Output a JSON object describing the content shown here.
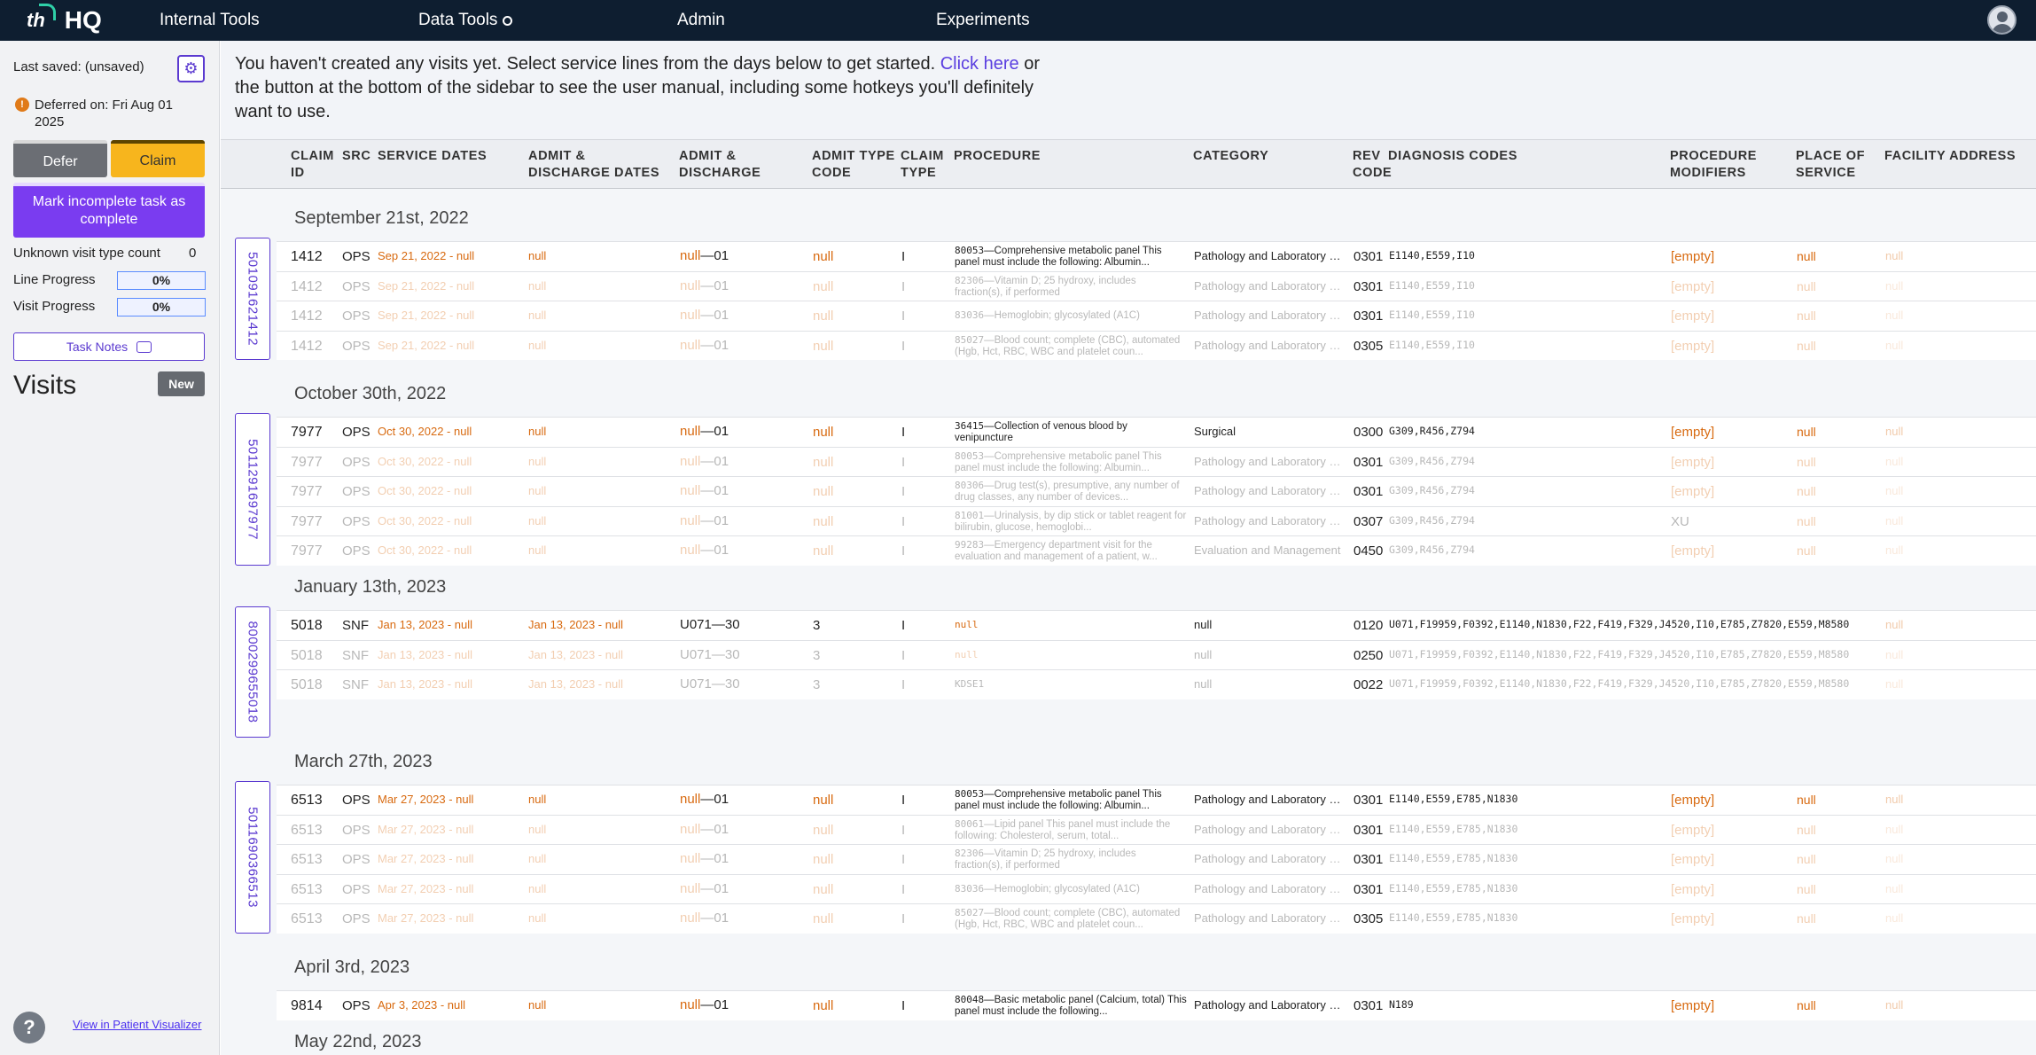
{
  "nav": {
    "logo_mark": "th",
    "logo_text": "HQ",
    "items": [
      "Internal Tools",
      "Data Tools",
      "Admin",
      "Experiments"
    ]
  },
  "sidebar": {
    "last_saved": "Last saved: (unsaved)",
    "deferred": "Deferred on: Fri Aug 01 2025",
    "defer_label": "Defer",
    "claim_label": "Claim",
    "mark_label": "Mark incomplete task as complete",
    "unknown_label": "Unknown visit type count",
    "unknown_value": "0",
    "line_label": "Line Progress",
    "line_value": "0%",
    "visit_label": "Visit Progress",
    "visit_value": "0%",
    "notes_label": "Task Notes",
    "visits_title": "Visits",
    "new_label": "New",
    "help": "?",
    "visualizer": "View in Patient Visualizer"
  },
  "banner": {
    "text": "You haven't created any visits yet. Select service lines from the days below to get started.",
    "link": "Click here",
    "rest": "or the button at the bottom of the sidebar to see the user manual, including some hotkeys you'll definitely want to use."
  },
  "headers": [
    "CLAIM ID",
    "SRC",
    "SERVICE DATES",
    "ADMIT & DISCHARGE DATES",
    "ADMIT & DISCHARGE",
    "ADMIT TYPE CODE",
    "CLAIM TYPE",
    "PROCEDURE",
    "CATEGORY",
    "REV CODE",
    "DIAGNOSIS CODES",
    "PROCEDURE MODIFIERS",
    "PLACE OF SERVICE",
    "FACILITY ADDRESS"
  ],
  "groups": [
    {
      "date": "September 21st, 2022",
      "claim": "5010916214​12",
      "rows": [
        {
          "cid": "1412",
          "src": "OPS",
          "sd": "Sep 21, 2022 - null",
          "ad": "null",
          "adc": "null",
          "adc2": "01",
          "atc": "null",
          "ct": "I",
          "pcode": "80053",
          "pdesc": "Comprehensive metabolic panel This panel must include the following: Albumin...",
          "cat": "Pathology and Laboratory Procedures",
          "rev": "0301",
          "dx": "E1140,E559,I10",
          "mod": "[empty]",
          "pos": "null",
          "fac": "null"
        },
        {
          "cid": "1412",
          "src": "OPS",
          "sd": "Sep 21, 2022 - null",
          "ad": "null",
          "adc": "null",
          "adc2": "01",
          "atc": "null",
          "ct": "I",
          "pcode": "82306",
          "pdesc": "Vitamin D; 25 hydroxy, includes fraction(s), if performed",
          "cat": "Pathology and Laboratory Procedures",
          "rev": "0301",
          "dx": "E1140,E559,I10",
          "mod": "[empty]",
          "pos": "null",
          "fac": "null"
        },
        {
          "cid": "1412",
          "src": "OPS",
          "sd": "Sep 21, 2022 - null",
          "ad": "null",
          "adc": "null",
          "adc2": "01",
          "atc": "null",
          "ct": "I",
          "pcode": "83036",
          "pdesc": "Hemoglobin; glycosylated (A1C)",
          "cat": "Pathology and Laboratory Procedures",
          "rev": "0301",
          "dx": "E1140,E559,I10",
          "mod": "[empty]",
          "pos": "null",
          "fac": "null"
        },
        {
          "cid": "1412",
          "src": "OPS",
          "sd": "Sep 21, 2022 - null",
          "ad": "null",
          "adc": "null",
          "adc2": "01",
          "atc": "null",
          "ct": "I",
          "pcode": "85027",
          "pdesc": "Blood count; complete (CBC), automated (Hgb, Hct, RBC, WBC and platelet coun...",
          "cat": "Pathology and Laboratory Procedures",
          "rev": "0305",
          "dx": "E1140,E559,I10",
          "mod": "[empty]",
          "pos": "null",
          "fac": "null"
        }
      ]
    },
    {
      "date": "October 30th, 2022",
      "claim": "5011291697977",
      "rows": [
        {
          "cid": "7977",
          "src": "OPS",
          "sd": "Oct 30, 2022 - null",
          "ad": "null",
          "adc": "null",
          "adc2": "01",
          "atc": "null",
          "ct": "I",
          "pcode": "36415",
          "pdesc": "Collection of venous blood by venipuncture",
          "cat": "Surgical",
          "rev": "0300",
          "dx": "G309,R456,Z794",
          "mod": "[empty]",
          "pos": "null",
          "fac": "null"
        },
        {
          "cid": "7977",
          "src": "OPS",
          "sd": "Oct 30, 2022 - null",
          "ad": "null",
          "adc": "null",
          "adc2": "01",
          "atc": "null",
          "ct": "I",
          "pcode": "80053",
          "pdesc": "Comprehensive metabolic panel This panel must include the following: Albumin...",
          "cat": "Pathology and Laboratory Procedures",
          "rev": "0301",
          "dx": "G309,R456,Z794",
          "mod": "[empty]",
          "pos": "null",
          "fac": "null"
        },
        {
          "cid": "7977",
          "src": "OPS",
          "sd": "Oct 30, 2022 - null",
          "ad": "null",
          "adc": "null",
          "adc2": "01",
          "atc": "null",
          "ct": "I",
          "pcode": "80306",
          "pdesc": "Drug test(s), presumptive, any number of drug classes, any number of devices...",
          "cat": "Pathology and Laboratory Procedures",
          "rev": "0301",
          "dx": "G309,R456,Z794",
          "mod": "[empty]",
          "pos": "null",
          "fac": "null"
        },
        {
          "cid": "7977",
          "src": "OPS",
          "sd": "Oct 30, 2022 - null",
          "ad": "null",
          "adc": "null",
          "adc2": "01",
          "atc": "null",
          "ct": "I",
          "pcode": "81001",
          "pdesc": "Urinalysis, by dip stick or tablet reagent for bilirubin, glucose, hemoglobi...",
          "cat": "Pathology and Laboratory Procedures",
          "rev": "0307",
          "dx": "G309,R456,Z794",
          "mod": "XU",
          "pos": "null",
          "fac": "null"
        },
        {
          "cid": "7977",
          "src": "OPS",
          "sd": "Oct 30, 2022 - null",
          "ad": "null",
          "adc": "null",
          "adc2": "01",
          "atc": "null",
          "ct": "I",
          "pcode": "99283",
          "pdesc": "Emergency department visit for the evaluation and management of a patient, w...",
          "cat": "Evaluation and Management",
          "rev": "0450",
          "dx": "G309,R456,Z794",
          "mod": "[empty]",
          "pos": "null",
          "fac": "null"
        }
      ]
    },
    {
      "date": "January 13th, 2023",
      "claim": "8000299655018",
      "rows": [
        {
          "cid": "5018",
          "src": "SNF",
          "sd": "Jan 13, 2023 - null",
          "ad": "Jan 13, 2023 - null",
          "adc": "U071",
          "adc2": "30",
          "atc": "3",
          "ct": "I",
          "pcode": "null",
          "pdesc": "",
          "cat": "null",
          "rev": "0120",
          "dx": "U071,F19959,F0392,E1140,N1830,F22,F419,F329,J4520,I10,E785,Z7820,E559,M8580",
          "mod": "",
          "pos": "",
          "fac": "null"
        },
        {
          "cid": "5018",
          "src": "SNF",
          "sd": "Jan 13, 2023 - null",
          "ad": "Jan 13, 2023 - null",
          "adc": "U071",
          "adc2": "30",
          "atc": "3",
          "ct": "I",
          "pcode": "null",
          "pdesc": "",
          "cat": "null",
          "rev": "0250",
          "dx": "U071,F19959,F0392,E1140,N1830,F22,F419,F329,J4520,I10,E785,Z7820,E559,M8580",
          "mod": "",
          "pos": "",
          "fac": "null"
        },
        {
          "cid": "5018",
          "src": "SNF",
          "sd": "Jan 13, 2023 - null",
          "ad": "Jan 13, 2023 - null",
          "adc": "U071",
          "adc2": "30",
          "atc": "3",
          "ct": "I",
          "pcode": "KDSE1",
          "pdesc": "",
          "cat": "null",
          "rev": "0022",
          "dx": "U071,F19959,F0392,E1140,N1830,F22,F419,F329,J4520,I10,E785,Z7820,E559,M8580",
          "mod": "",
          "pos": "",
          "fac": "null"
        }
      ]
    },
    {
      "date": "March 27th, 2023",
      "claim": "5011690366513",
      "rows": [
        {
          "cid": "6513",
          "src": "OPS",
          "sd": "Mar 27, 2023 - null",
          "ad": "null",
          "adc": "null",
          "adc2": "01",
          "atc": "null",
          "ct": "I",
          "pcode": "80053",
          "pdesc": "Comprehensive metabolic panel This panel must include the following: Albumin...",
          "cat": "Pathology and Laboratory Procedures",
          "rev": "0301",
          "dx": "E1140,E559,E785,N1830",
          "mod": "[empty]",
          "pos": "null",
          "fac": "null"
        },
        {
          "cid": "6513",
          "src": "OPS",
          "sd": "Mar 27, 2023 - null",
          "ad": "null",
          "adc": "null",
          "adc2": "01",
          "atc": "null",
          "ct": "I",
          "pcode": "80061",
          "pdesc": "Lipid panel This panel must include the following: Cholesterol, serum, total...",
          "cat": "Pathology and Laboratory Procedures",
          "rev": "0301",
          "dx": "E1140,E559,E785,N1830",
          "mod": "[empty]",
          "pos": "null",
          "fac": "null"
        },
        {
          "cid": "6513",
          "src": "OPS",
          "sd": "Mar 27, 2023 - null",
          "ad": "null",
          "adc": "null",
          "adc2": "01",
          "atc": "null",
          "ct": "I",
          "pcode": "82306",
          "pdesc": "Vitamin D; 25 hydroxy, includes fraction(s), if performed",
          "cat": "Pathology and Laboratory Procedures",
          "rev": "0301",
          "dx": "E1140,E559,E785,N1830",
          "mod": "[empty]",
          "pos": "null",
          "fac": "null"
        },
        {
          "cid": "6513",
          "src": "OPS",
          "sd": "Mar 27, 2023 - null",
          "ad": "null",
          "adc": "null",
          "adc2": "01",
          "atc": "null",
          "ct": "I",
          "pcode": "83036",
          "pdesc": "Hemoglobin; glycosylated (A1C)",
          "cat": "Pathology and Laboratory Procedures",
          "rev": "0301",
          "dx": "E1140,E559,E785,N1830",
          "mod": "[empty]",
          "pos": "null",
          "fac": "null"
        },
        {
          "cid": "6513",
          "src": "OPS",
          "sd": "Mar 27, 2023 - null",
          "ad": "null",
          "adc": "null",
          "adc2": "01",
          "atc": "null",
          "ct": "I",
          "pcode": "85027",
          "pdesc": "Blood count; complete (CBC), automated (Hgb, Hct, RBC, WBC and platelet coun...",
          "cat": "Pathology and Laboratory Procedures",
          "rev": "0305",
          "dx": "E1140,E559,E785,N1830",
          "mod": "[empty]",
          "pos": "null",
          "fac": "null"
        }
      ]
    },
    {
      "date": "April 3rd, 2023",
      "claim": "",
      "rows": [
        {
          "cid": "9814",
          "src": "OPS",
          "sd": "Apr 3, 2023 - null",
          "ad": "null",
          "adc": "null",
          "adc2": "01",
          "atc": "null",
          "ct": "I",
          "pcode": "80048",
          "pdesc": "Basic metabolic panel (Calcium, total) This panel must include the following...",
          "cat": "Pathology and Laboratory Procedures",
          "rev": "0301",
          "dx": "N189",
          "mod": "[empty]",
          "pos": "null",
          "fac": "null"
        }
      ]
    },
    {
      "date": "May 22nd, 2023",
      "claim": "",
      "rows": []
    }
  ]
}
